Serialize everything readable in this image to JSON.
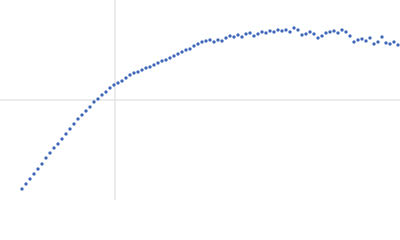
{
  "chart_data": {
    "type": "scatter",
    "color": "#3d66b8",
    "xlim": [
      0,
      400
    ],
    "ylim": [
      0,
      200
    ],
    "reference_lines": {
      "x": 115,
      "y": 100
    },
    "x": [
      22,
      26,
      30,
      34,
      38,
      42,
      46,
      50,
      54,
      58,
      62,
      66,
      70,
      74,
      78,
      82,
      86,
      90,
      94,
      98,
      102,
      106,
      110,
      114,
      118,
      122,
      126,
      130,
      134,
      138,
      142,
      146,
      150,
      154,
      158,
      162,
      166,
      170,
      174,
      178,
      182,
      186,
      190,
      194,
      198,
      202,
      206,
      210,
      214,
      218,
      222,
      226,
      230,
      234,
      238,
      242,
      246,
      250,
      254,
      258,
      262,
      266,
      270,
      274,
      278,
      282,
      286,
      290,
      294,
      298,
      302,
      306,
      310,
      314,
      318,
      322,
      326,
      330,
      334,
      338,
      342,
      346,
      350,
      354,
      358,
      362,
      366,
      370,
      374,
      378,
      382,
      386,
      390,
      394,
      398
    ],
    "values": [
      11,
      16,
      21,
      26,
      31,
      36,
      42,
      47,
      52,
      56,
      61,
      66,
      71,
      76,
      81,
      85,
      89,
      93,
      98,
      101,
      105,
      108,
      112,
      115,
      117,
      119,
      122,
      125,
      127,
      128,
      130,
      132,
      133,
      135,
      137,
      139,
      140,
      142,
      144,
      146,
      148,
      150,
      151,
      154,
      156,
      158,
      159,
      160,
      158,
      160,
      159,
      162,
      164,
      163,
      165,
      163,
      166,
      167,
      164,
      166,
      168,
      167,
      169,
      168,
      170,
      169,
      170,
      168,
      172,
      170,
      165,
      166,
      168,
      166,
      162,
      164,
      167,
      168,
      169,
      167,
      170,
      168,
      164,
      158,
      160,
      161,
      159,
      162,
      156,
      158,
      163,
      157,
      156,
      158,
      155
    ]
  }
}
